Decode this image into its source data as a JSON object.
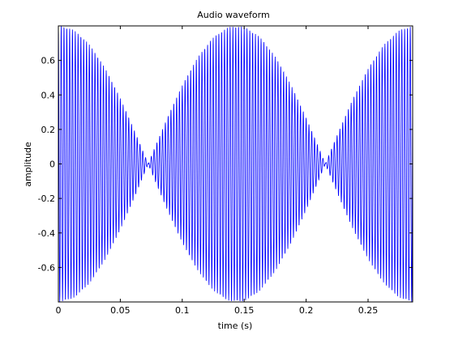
{
  "chart_data": {
    "type": "line",
    "title": "Audio waveform",
    "xlabel": "time (s)",
    "ylabel": "amplitude",
    "xlim": [
      0,
      0.286
    ],
    "ylim": [
      -0.8,
      0.8
    ],
    "xticks": [
      0,
      0.05,
      0.1,
      0.15,
      0.2,
      0.25
    ],
    "xtick_labels": [
      "0",
      "0.05",
      "0.1",
      "0.15",
      "0.2",
      "0.25"
    ],
    "yticks": [
      -0.6,
      -0.4,
      -0.2,
      0,
      0.2,
      0.4,
      0.6
    ],
    "ytick_labels": [
      "-0.6",
      "-0.4",
      "-0.2",
      "0",
      "0.2",
      "0.4",
      "0.6"
    ],
    "grid": false,
    "legend": false,
    "series": [
      {
        "color": "#0000ff",
        "signal": {
          "kind": "amplitude-modulated tone",
          "peak_amplitude": 0.8,
          "carrier_hz": 440,
          "envelope_node_times": [
            0.0725,
            0.2155
          ],
          "envelope_peak_times": [
            0.0,
            0.144,
            0.286
          ],
          "sample_rate_hz": 8000,
          "duration_s": 0.286
        }
      }
    ]
  }
}
